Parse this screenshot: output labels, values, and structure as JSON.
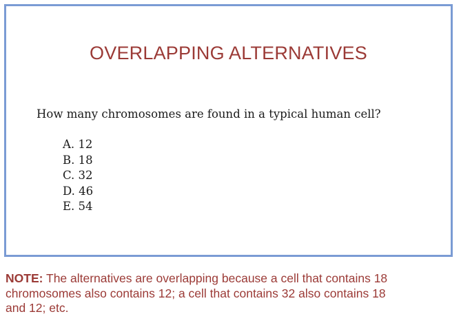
{
  "slide": {
    "title": "OVERLAPPING ALTERNATIVES",
    "question": "How many chromosomes are found in a typical human cell?",
    "options": [
      {
        "letter": "A.",
        "value": "12"
      },
      {
        "letter": "B.",
        "value": "18"
      },
      {
        "letter": "C.",
        "value": "32"
      },
      {
        "letter": "D.",
        "value": "46"
      },
      {
        "letter": "E.",
        "value": "54"
      }
    ]
  },
  "note": {
    "label": "NOTE:",
    "text": " The alternatives are overlapping because a cell that contains 18 chromosomes also contains 12; a cell that contains 32 also contains 18 and 12; etc."
  },
  "colors": {
    "accent": "#9b3a36",
    "frame_border": "#7a9bd4",
    "body_text": "#1a1a1a"
  }
}
